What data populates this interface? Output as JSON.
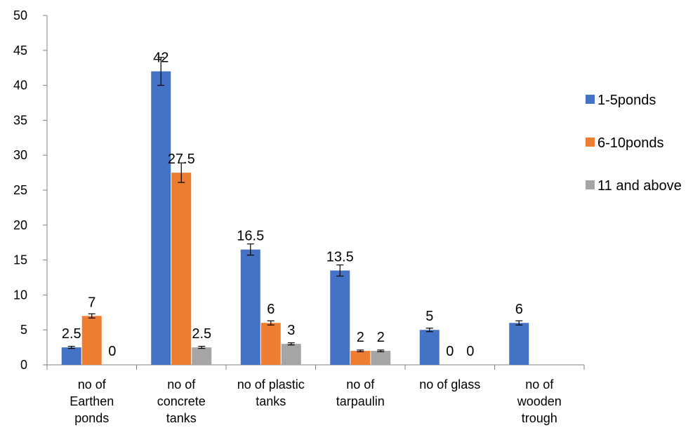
{
  "chart_data": {
    "type": "bar",
    "categories": [
      [
        "no of",
        "Earthen",
        "ponds"
      ],
      [
        "no of",
        "concrete",
        "tanks"
      ],
      [
        "no of plastic",
        "tanks"
      ],
      [
        "no of",
        "tarpaulin"
      ],
      [
        "no of glass"
      ],
      [
        "no of",
        "wooden",
        "trough"
      ]
    ],
    "series": [
      {
        "name": "1-5ponds",
        "color": "#4472C4",
        "values": [
          2.5,
          42,
          16.5,
          13.5,
          5,
          6
        ],
        "errors": [
          0.15,
          2.0,
          0.8,
          0.8,
          0.25,
          0.3
        ]
      },
      {
        "name": "6-10ponds",
        "color": "#ED7D31",
        "values": [
          7,
          27.5,
          6,
          2,
          0,
          null
        ],
        "errors": [
          0.3,
          1.4,
          0.3,
          0.12,
          0,
          null
        ]
      },
      {
        "name": "11 and above",
        "color": "#A5A5A5",
        "values": [
          0,
          2.5,
          3,
          2,
          0,
          null
        ],
        "errors": [
          0,
          0.15,
          0.15,
          0.12,
          0,
          null
        ]
      }
    ],
    "data_labels": [
      [
        "2.5",
        "42",
        "16.5",
        "13.5",
        "5",
        "6"
      ],
      [
        "7",
        "27.5",
        "6",
        "2",
        "0",
        ""
      ],
      [
        "0",
        "2.5",
        "3",
        "2",
        "0",
        ""
      ]
    ],
    "ylim": [
      0,
      50
    ],
    "yticks": [
      0,
      5,
      10,
      15,
      20,
      25,
      30,
      35,
      40,
      45,
      50
    ],
    "title": "",
    "xlabel": "",
    "ylabel": "",
    "legend_position": "right",
    "grid": false
  }
}
